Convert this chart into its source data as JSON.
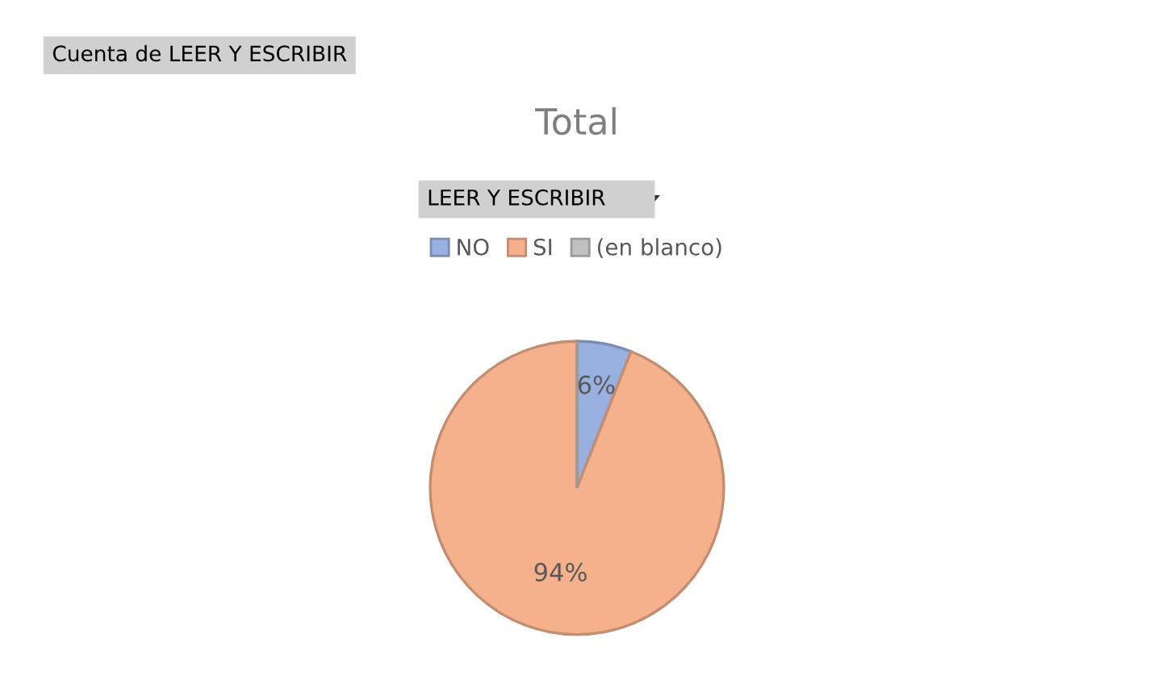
{
  "chart_data": {
    "type": "pie",
    "title": "Total",
    "categories": [
      "NO",
      "SI",
      "(en blanco)"
    ],
    "values": [
      6,
      94,
      0
    ],
    "colors": [
      "#97b0e0",
      "#f5b08c",
      "#c0c0c0"
    ],
    "value_labels": [
      "6%",
      "94%",
      null
    ],
    "legend": "top",
    "annotations": [
      "Cuenta de LEER Y ESCRIBIR",
      "LEER Y ESCRIBIR"
    ]
  }
}
